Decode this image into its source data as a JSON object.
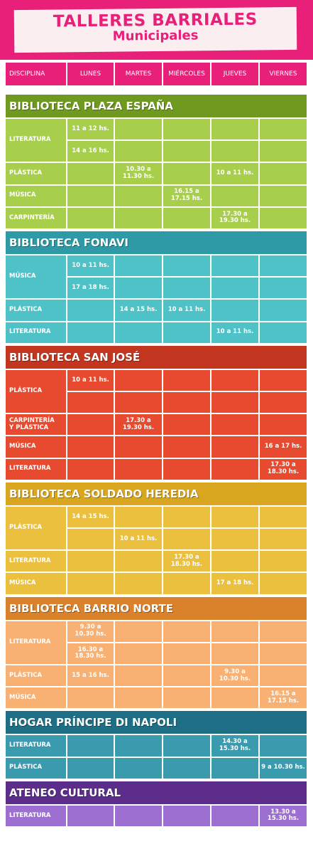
{
  "header": {
    "title": "TALLERES BARRIALES",
    "subtitle": "Municipales"
  },
  "columns": [
    "DISCIPLINA",
    "LUNES",
    "MARTES",
    "MIÉRCOLES",
    "JUEVES",
    "VIERNES"
  ],
  "sections": [
    {
      "title": "BIBLIOTECA PLAZA ESPAÑA",
      "header_color": "#6f9a1f",
      "color": "#a8cf4b",
      "rows": [
        {
          "discipline": "LITERATURA",
          "lines": [
            [
              "11 a 12 hs.",
              null,
              null,
              null,
              null
            ],
            [
              "14 a 16 hs.",
              null,
              null,
              null,
              null
            ]
          ]
        },
        {
          "discipline": "PLÁSTICA",
          "lines": [
            [
              null,
              "10.30 a\n11.30 hs.",
              null,
              "10 a 11 hs.",
              null
            ]
          ]
        },
        {
          "discipline": "MÚSICA",
          "lines": [
            [
              null,
              null,
              "16.15 a\n17.15 hs.",
              null,
              null
            ]
          ]
        },
        {
          "discipline": "CARPINTERÍA",
          "lines": [
            [
              null,
              null,
              null,
              "17.30 a\n19.30 hs.",
              null
            ]
          ]
        }
      ]
    },
    {
      "title": "BIBLIOTECA FONAVI",
      "header_color": "#2e9aa5",
      "color": "#4fc2c7",
      "rows": [
        {
          "discipline": "MÚSICA",
          "lines": [
            [
              "10 a 11 hs.",
              null,
              null,
              null,
              null
            ],
            [
              "17 a 18 hs.",
              null,
              null,
              null,
              null
            ]
          ]
        },
        {
          "discipline": "PLÁSTICA",
          "lines": [
            [
              null,
              "14 a 15 hs.",
              "10 a 11 hs.",
              null,
              null
            ]
          ]
        },
        {
          "discipline": "LITERATURA",
          "lines": [
            [
              null,
              null,
              null,
              "10 a 11 hs.",
              null
            ]
          ]
        }
      ]
    },
    {
      "title": "BIBLIOTECA SAN JOSÉ",
      "header_color": "#c2361f",
      "color": "#e84a2f",
      "rows": [
        {
          "discipline": "PLÁSTICA",
          "lines": [
            [
              "10 a 11 hs.",
              null,
              null,
              null,
              null
            ],
            [
              null,
              null,
              null,
              null,
              null
            ]
          ]
        },
        {
          "discipline": "CARPINTERÍA\nY PLÁSTICA",
          "lines": [
            [
              null,
              "17.30 a\n19.30 hs.",
              null,
              null,
              null
            ]
          ]
        },
        {
          "discipline": "MÚSICA",
          "lines": [
            [
              null,
              null,
              null,
              null,
              "16 a 17 hs."
            ]
          ]
        },
        {
          "discipline": "LITERATURA",
          "lines": [
            [
              null,
              null,
              null,
              null,
              "17.30 a\n18.30 hs."
            ]
          ]
        }
      ]
    },
    {
      "title": "BIBLIOTECA SOLDADO HEREDIA",
      "header_color": "#d8a71f",
      "color": "#ebc03f",
      "rows": [
        {
          "discipline": "PLÁSTICA",
          "lines": [
            [
              "14 a 15 hs.",
              null,
              null,
              null,
              null
            ],
            [
              null,
              "10 a 11 hs.",
              null,
              null,
              null
            ]
          ]
        },
        {
          "discipline": "LITERATURA",
          "lines": [
            [
              null,
              null,
              "17.30 a\n18.30 hs.",
              null,
              null
            ]
          ]
        },
        {
          "discipline": "MÚSICA",
          "lines": [
            [
              null,
              null,
              null,
              "17 a 18 hs.",
              null
            ]
          ]
        }
      ]
    },
    {
      "title": "BIBLIOTECA BARRIO NORTE",
      "header_color": "#d9822b",
      "color": "#f8b172",
      "rows": [
        {
          "discipline": "LITERATURA",
          "lines": [
            [
              "9.30 a\n10.30 hs.",
              null,
              null,
              null,
              null
            ],
            [
              "16.30 a\n18.30 hs.",
              null,
              null,
              null,
              null
            ]
          ]
        },
        {
          "discipline": "PLÁSTICA",
          "lines": [
            [
              "15 a 16 hs.",
              null,
              null,
              "9.30 a\n10.30 hs.",
              null
            ]
          ]
        },
        {
          "discipline": "MÚSICA",
          "lines": [
            [
              null,
              null,
              null,
              null,
              "16.15 a\n17.15 hs."
            ]
          ]
        }
      ]
    },
    {
      "title": "HOGAR PRÍNCIPE DI NAPOLI",
      "header_color": "#1e6f86",
      "color": "#3b9bae",
      "rows": [
        {
          "discipline": "LITERATURA",
          "lines": [
            [
              null,
              null,
              null,
              "14.30 a\n15.30 hs.",
              null
            ]
          ]
        },
        {
          "discipline": "PLÁSTICA",
          "lines": [
            [
              null,
              null,
              null,
              null,
              "9 a 10.30 hs."
            ]
          ]
        }
      ]
    },
    {
      "title": "ATENEO CULTURAL",
      "header_color": "#5d2d8b",
      "color": "#9c6fd1",
      "rows": [
        {
          "discipline": "LITERATURA",
          "lines": [
            [
              null,
              null,
              null,
              null,
              "13.30 a\n15.30 hs."
            ]
          ]
        }
      ]
    }
  ]
}
